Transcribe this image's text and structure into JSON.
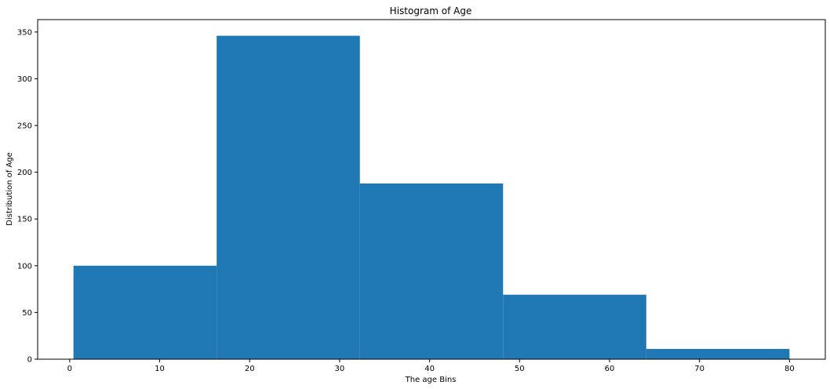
{
  "chart_data": {
    "type": "histogram",
    "title": "Histogram of Age",
    "xlabel": "The age Bins",
    "ylabel": "Distribution of Age",
    "bin_edges": [
      0.42,
      16.336,
      32.252,
      48.168,
      64.084,
      80.0
    ],
    "counts": [
      100,
      346,
      188,
      69,
      11
    ],
    "xlim": [
      -3.559,
      83.979
    ],
    "ylim": [
      0,
      363.3
    ],
    "xticks": [
      0,
      10,
      20,
      30,
      40,
      50,
      60,
      70,
      80
    ],
    "yticks": [
      0,
      50,
      100,
      150,
      200,
      250,
      300,
      350
    ],
    "xtick_labels": [
      "0",
      "10",
      "20",
      "30",
      "40",
      "50",
      "60",
      "70",
      "80"
    ],
    "ytick_labels": [
      "0",
      "50",
      "100",
      "150",
      "200",
      "250",
      "300",
      "350"
    ],
    "grid": false,
    "bar_color": "#1f77b4",
    "axis_color": "#000000"
  }
}
